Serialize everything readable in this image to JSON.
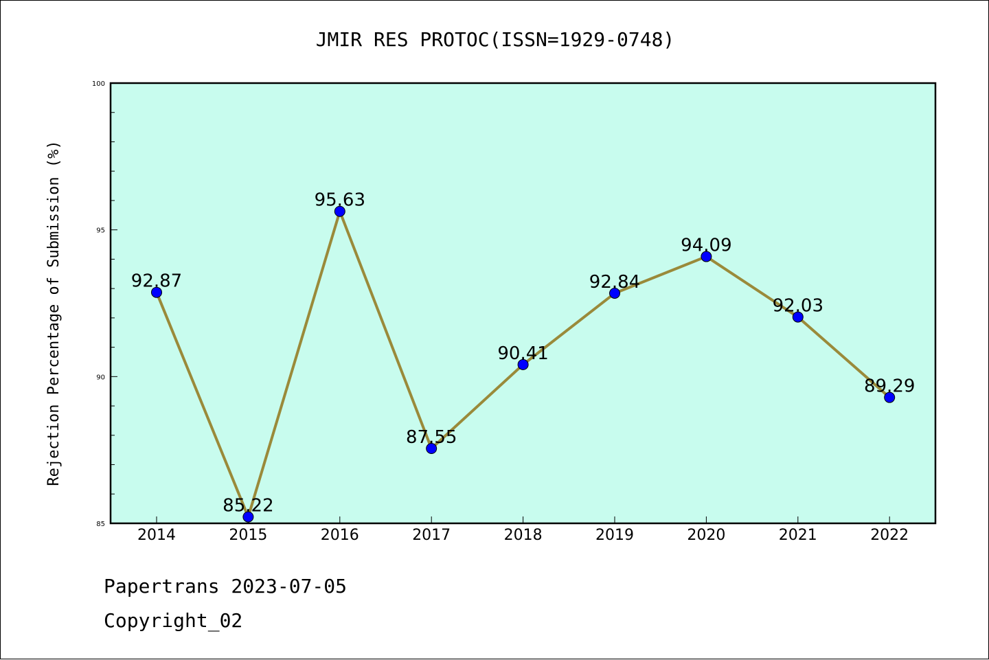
{
  "chart_data": {
    "type": "line",
    "title": "JMIR RES PROTOC(ISSN=1929-0748)",
    "ylabel": "Rejection Percentage of Submission (%)",
    "xlabel": "",
    "categories": [
      "2014",
      "2015",
      "2016",
      "2017",
      "2018",
      "2019",
      "2020",
      "2021",
      "2022"
    ],
    "series": [
      {
        "values": [
          92.87,
          85.22,
          95.63,
          87.55,
          90.41,
          92.84,
          94.09,
          92.03,
          89.29
        ],
        "labels": [
          "92.87",
          "85.22",
          "95.63",
          "87.55",
          "90.41",
          "92.84",
          "94.09",
          "92.03",
          "89.29"
        ]
      }
    ],
    "ylim": [
      85,
      100
    ],
    "yticks": [
      85,
      90,
      95,
      100
    ],
    "ytick_labels": [
      "85",
      "90",
      "95",
      "100"
    ],
    "grid": false,
    "colors": {
      "plot_background": "#c8fcee",
      "line": "#9a8a3a",
      "marker": "#0000ff"
    }
  },
  "footer": {
    "line1": "Papertrans 2023-07-05",
    "line2": "Copyright_02"
  }
}
